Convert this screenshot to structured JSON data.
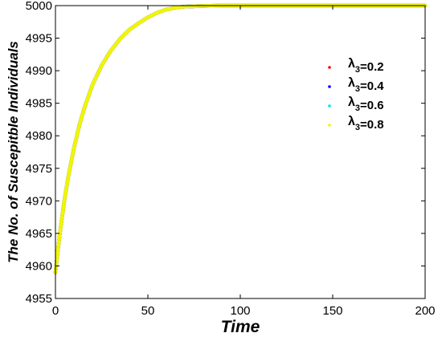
{
  "chart_data": {
    "type": "line",
    "title": "",
    "xlabel": "Time",
    "ylabel": "The No. of Suscepitble Individuals",
    "xlim": [
      0,
      200
    ],
    "ylim": [
      4955,
      5000
    ],
    "xticks": [
      "0",
      "50",
      "100",
      "150",
      "200"
    ],
    "yticks": [
      "4955",
      "4960",
      "4965",
      "4970",
      "4975",
      "4980",
      "4985",
      "4990",
      "4995",
      "5000"
    ],
    "grid": false,
    "legend_position": "right",
    "series": [
      {
        "name": "λ3=0.2",
        "label_main": "λ",
        "label_sub": "3",
        "label_value": "=0.2",
        "color": "#ff0000",
        "x": [
          0,
          1,
          2,
          3,
          5,
          7,
          10,
          13,
          16,
          20,
          25,
          30,
          35,
          40,
          45,
          50,
          55,
          60,
          65,
          70,
          80,
          90,
          100,
          120,
          140,
          160,
          180,
          200
        ],
        "y": [
          4959,
          4961.6,
          4964.1,
          4966.3,
          4970.4,
          4973.8,
          4978.1,
          4981.7,
          4984.6,
          4987.8,
          4990.8,
          4993.1,
          4994.9,
          4996.3,
          4997.3,
          4998.2,
          4998.9,
          4999.4,
          4999.7,
          4999.85,
          4999.95,
          5000,
          5000,
          5000,
          5000,
          5000,
          5000,
          5000
        ]
      },
      {
        "name": "λ3=0.4",
        "label_main": "λ",
        "label_sub": "3",
        "label_value": "=0.4",
        "color": "#0000ff",
        "x": [
          0,
          1,
          2,
          3,
          5,
          7,
          10,
          13,
          16,
          20,
          25,
          30,
          35,
          40,
          45,
          50,
          55,
          60,
          65,
          70,
          80,
          90,
          100,
          120,
          140,
          160,
          180,
          200
        ],
        "y": [
          4959,
          4961.6,
          4964.1,
          4966.3,
          4970.4,
          4973.8,
          4978.1,
          4981.7,
          4984.6,
          4987.8,
          4990.8,
          4993.1,
          4994.9,
          4996.3,
          4997.3,
          4998.2,
          4998.9,
          4999.4,
          4999.7,
          4999.85,
          4999.95,
          5000,
          5000,
          5000,
          5000,
          5000,
          5000,
          5000
        ]
      },
      {
        "name": "λ3=0.6",
        "label_main": "λ",
        "label_sub": "3",
        "label_value": "=0.6",
        "color": "#00e5ee",
        "x": [
          0,
          1,
          2,
          3,
          5,
          7,
          10,
          13,
          16,
          20,
          25,
          30,
          35,
          40,
          45,
          50,
          55,
          60,
          65,
          70,
          80,
          90,
          100,
          120,
          140,
          160,
          180,
          200
        ],
        "y": [
          4959,
          4961.6,
          4964.1,
          4966.3,
          4970.4,
          4973.8,
          4978.1,
          4981.7,
          4984.6,
          4987.8,
          4990.8,
          4993.1,
          4994.9,
          4996.3,
          4997.3,
          4998.2,
          4998.9,
          4999.4,
          4999.7,
          4999.85,
          4999.95,
          5000,
          5000,
          5000,
          5000,
          5000,
          5000,
          5000
        ]
      },
      {
        "name": "λ3=0.8",
        "label_main": "λ",
        "label_sub": "3",
        "label_value": "=0.8",
        "color": "#f4f400",
        "x": [
          0,
          1,
          2,
          3,
          5,
          7,
          10,
          13,
          16,
          20,
          25,
          30,
          35,
          40,
          45,
          50,
          55,
          60,
          65,
          70,
          80,
          90,
          100,
          120,
          140,
          160,
          180,
          200
        ],
        "y": [
          4959,
          4961.6,
          4964.1,
          4966.3,
          4970.4,
          4973.8,
          4978.1,
          4981.7,
          4984.6,
          4987.8,
          4990.8,
          4993.1,
          4994.9,
          4996.3,
          4997.3,
          4998.2,
          4998.9,
          4999.4,
          4999.7,
          4999.85,
          4999.95,
          5000,
          5000,
          5000,
          5000,
          5000,
          5000,
          5000
        ]
      }
    ]
  }
}
